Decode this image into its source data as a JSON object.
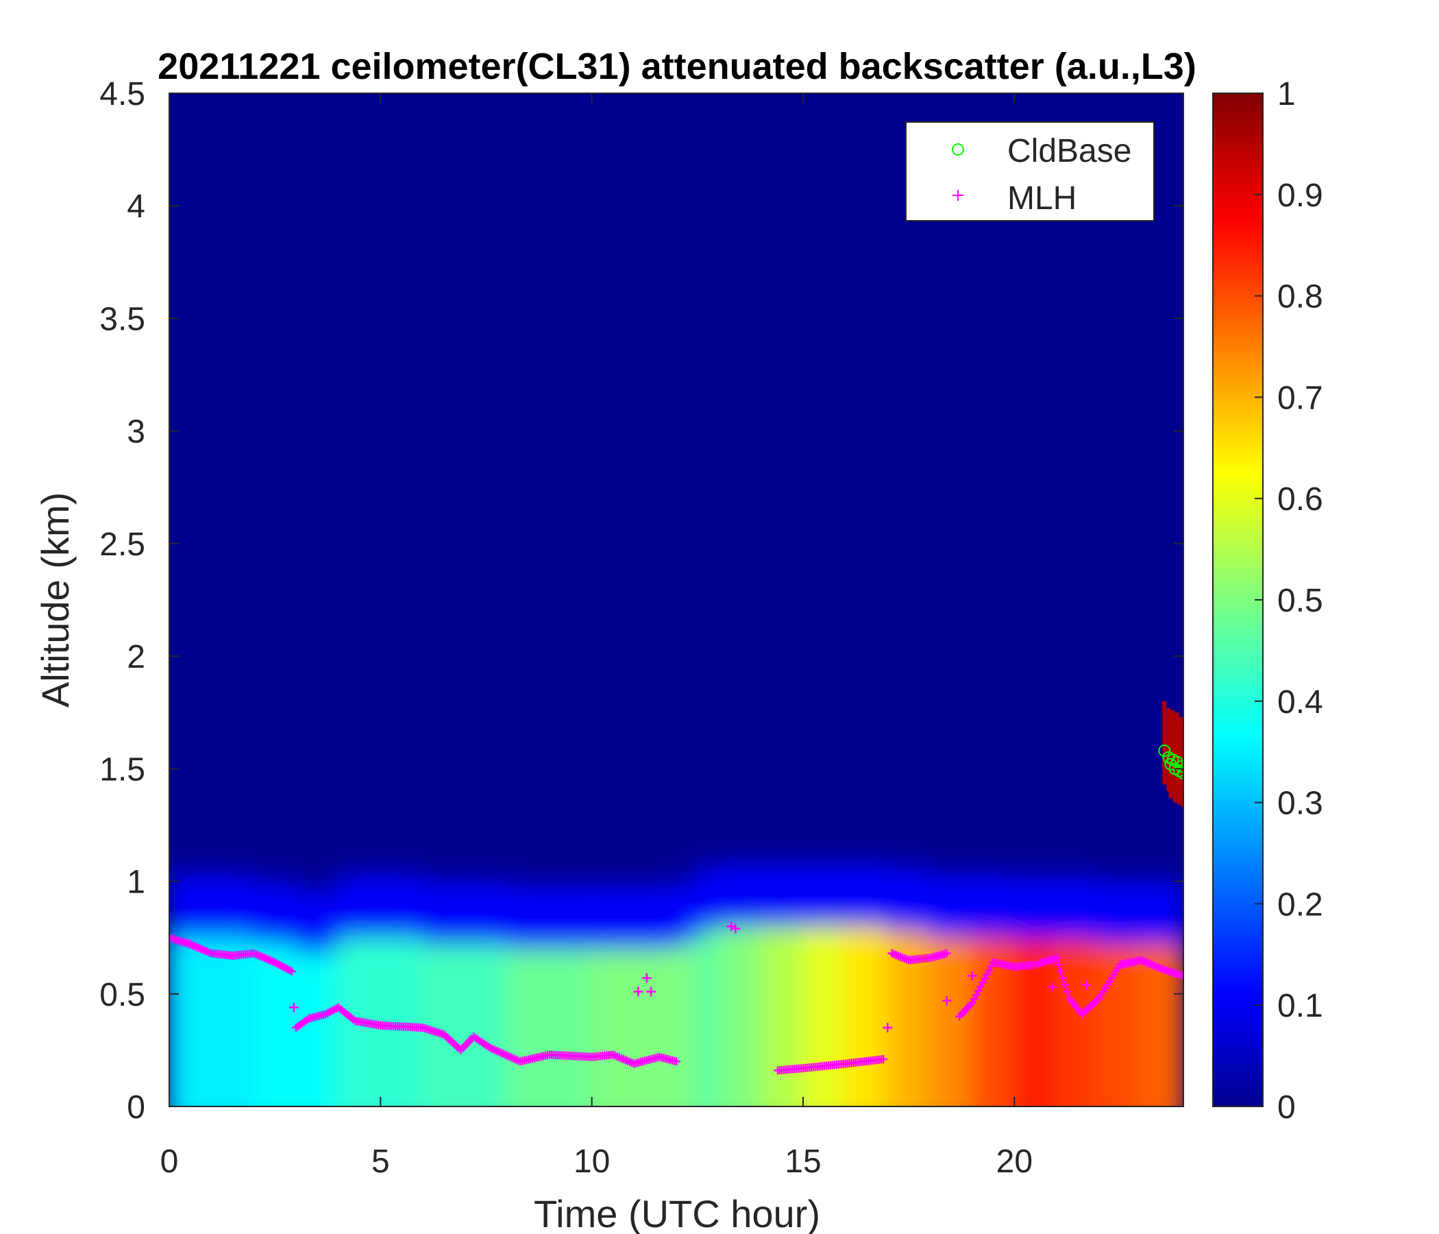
{
  "chart_data": {
    "type": "heatmap",
    "title": "20211221 ceilometer(CL31) attenuated backscatter (a.u.,L3)",
    "xlabel": "Time (UTC hour)",
    "ylabel": "Altitude (km)",
    "xlim": [
      0,
      24
    ],
    "ylim": [
      0,
      4.5
    ],
    "x_ticks": [
      0,
      5,
      10,
      15,
      20
    ],
    "y_ticks": [
      0,
      0.5,
      1,
      1.5,
      2,
      2.5,
      3,
      3.5,
      4,
      4.5
    ],
    "y_tick_labels": [
      "0",
      "0.5",
      "1",
      "1.5",
      "2",
      "2.5",
      "3",
      "3.5",
      "4",
      "4.5"
    ],
    "colorbar": {
      "colormap": "jet",
      "range": [
        0,
        1
      ],
      "ticks": [
        0,
        0.1,
        0.2,
        0.3,
        0.4,
        0.5,
        0.6,
        0.7,
        0.8,
        0.9,
        1
      ],
      "tick_labels": [
        "0",
        "0.1",
        "0.2",
        "0.3",
        "0.4",
        "0.5",
        "0.6",
        "0.7",
        "0.8",
        "0.9",
        "1"
      ]
    },
    "legend": {
      "placement": "top-right",
      "entries": [
        {
          "name": "CldBase",
          "marker": "circle",
          "color": "#00ff00"
        },
        {
          "name": "MLH",
          "marker": "plus",
          "color": "#ff00ff"
        }
      ]
    },
    "backscatter_layer": {
      "time_hours": [
        0,
        2,
        3,
        4,
        6,
        8,
        10,
        12,
        12.5,
        13,
        14,
        15,
        16,
        17,
        18,
        19,
        20,
        21,
        22,
        23,
        24
      ],
      "top_km": [
        0.75,
        0.72,
        0.68,
        0.75,
        0.72,
        0.7,
        0.7,
        0.72,
        0.78,
        0.8,
        0.8,
        0.8,
        0.8,
        0.78,
        0.75,
        0.75,
        0.74,
        0.74,
        0.72,
        0.72,
        0.72
      ],
      "intensity": [
        0.36,
        0.38,
        0.38,
        0.42,
        0.44,
        0.48,
        0.5,
        0.5,
        0.46,
        0.5,
        0.55,
        0.6,
        0.65,
        0.7,
        0.74,
        0.8,
        0.85,
        0.82,
        0.8,
        0.78,
        0.72
      ]
    },
    "series": [
      {
        "name": "MLH",
        "x": [
          0,
          0.5,
          1,
          1.5,
          2,
          2.5,
          2.9,
          3.0,
          3.3,
          3.7,
          4.0,
          4.4,
          5,
          6,
          6.5,
          6.9,
          7.2,
          7.6,
          8.3,
          9,
          10,
          10.5,
          11,
          11.6,
          12,
          14.4,
          15,
          16,
          16.9,
          17.1,
          17.5,
          18,
          18.4,
          18.7,
          19,
          19.5,
          20,
          20.5,
          21,
          21.3,
          21.6,
          22,
          22.5,
          23,
          23.5,
          24
        ],
        "y": [
          0.75,
          0.72,
          0.68,
          0.67,
          0.68,
          0.64,
          0.6,
          0.35,
          0.39,
          0.41,
          0.44,
          0.38,
          0.36,
          0.35,
          0.32,
          0.25,
          0.31,
          0.26,
          0.2,
          0.23,
          0.22,
          0.23,
          0.19,
          0.22,
          0.2,
          0.16,
          0.17,
          0.19,
          0.21,
          0.68,
          0.65,
          0.66,
          0.68,
          0.4,
          0.46,
          0.64,
          0.62,
          0.63,
          0.66,
          0.48,
          0.41,
          0.48,
          0.63,
          0.65,
          0.61,
          0.58
        ]
      },
      {
        "name": "MLH-scattered",
        "x": [
          2.95,
          11.1,
          11.3,
          11.4,
          13.3,
          13.4,
          17.0,
          18.4,
          19.0,
          20.9,
          21.7
        ],
        "y": [
          0.44,
          0.51,
          0.57,
          0.51,
          0.8,
          0.79,
          0.35,
          0.47,
          0.58,
          0.53,
          0.54
        ]
      },
      {
        "name": "CldBase",
        "x": [
          23.55,
          23.65,
          23.7,
          23.75,
          23.8,
          23.85,
          23.9,
          23.95,
          24.0
        ],
        "y": [
          1.58,
          1.55,
          1.52,
          1.54,
          1.5,
          1.53,
          1.49,
          1.51,
          1.48
        ]
      }
    ]
  }
}
